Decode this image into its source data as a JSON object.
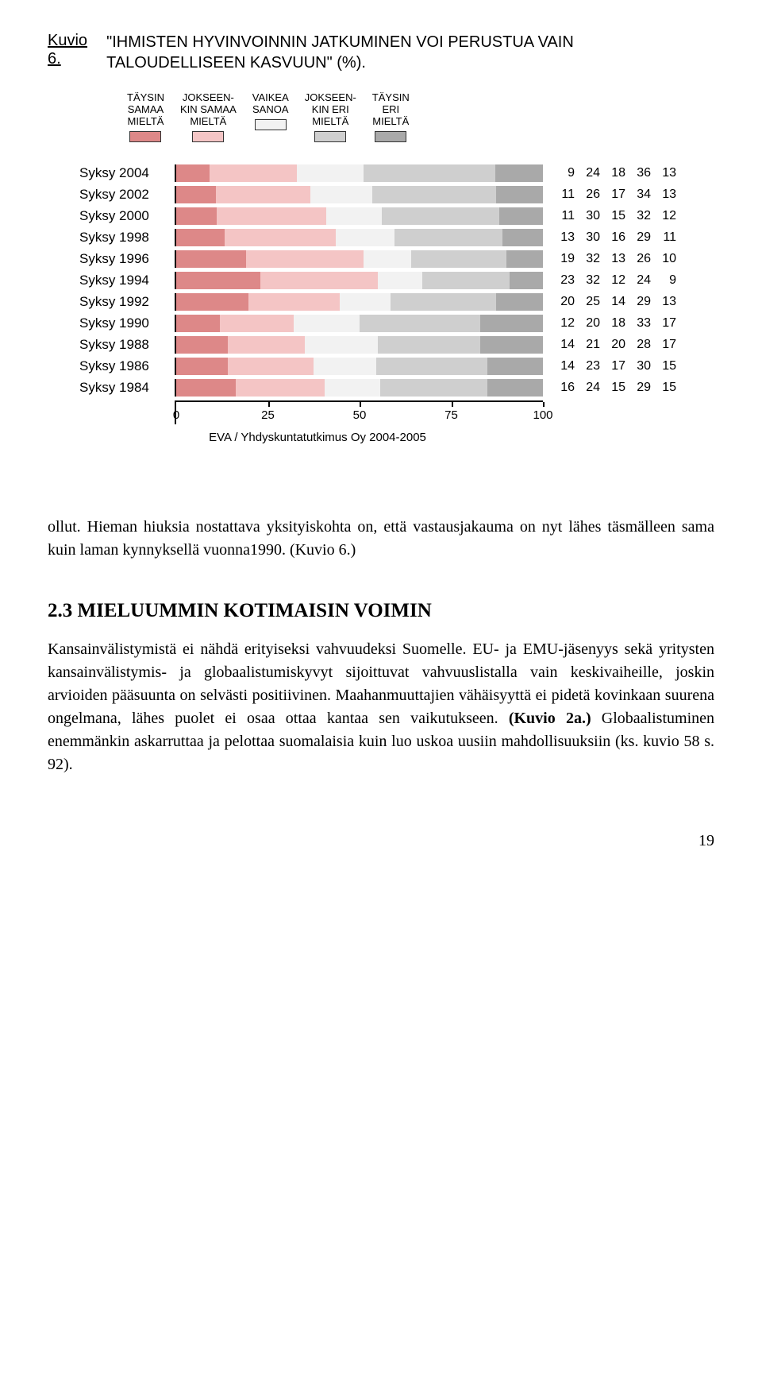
{
  "figure": {
    "label": "Kuvio 6.",
    "title": "\"IHMISTEN HYVINVOINNIN JATKUMINEN VOI PERUSTUA VAIN TALOUDELLISEEN KASVUUN\" (%).",
    "legend": [
      {
        "lines": [
          "TÄYSIN",
          "SAMAA",
          "MIELTÄ"
        ],
        "color": "#dd8888"
      },
      {
        "lines": [
          "JOKSEEN-",
          "KIN SAMAA",
          "MIELTÄ"
        ],
        "color": "#f4c5c5"
      },
      {
        "lines": [
          "VAIKEA",
          "SANOA"
        ],
        "color": "#f2f2f2"
      },
      {
        "lines": [
          "JOKSEEN-",
          "KIN ERI",
          "MIELTÄ"
        ],
        "color": "#cfcfcf"
      },
      {
        "lines": [
          "TÄYSIN",
          "ERI",
          "MIELTÄ"
        ],
        "color": "#a9a9a9"
      }
    ],
    "series_colors": [
      "#dd8888",
      "#f4c5c5",
      "#f2f2f2",
      "#cfcfcf",
      "#a9a9a9"
    ],
    "rows": [
      {
        "label": "Syksy 2004",
        "values": [
          9,
          24,
          18,
          36,
          13
        ]
      },
      {
        "label": "Syksy 2002",
        "values": [
          11,
          26,
          17,
          34,
          13
        ]
      },
      {
        "label": "Syksy 2000",
        "values": [
          11,
          30,
          15,
          32,
          12
        ]
      },
      {
        "label": "Syksy 1998",
        "values": [
          13,
          30,
          16,
          29,
          11
        ]
      },
      {
        "label": "Syksy 1996",
        "values": [
          19,
          32,
          13,
          26,
          10
        ]
      },
      {
        "label": "Syksy 1994",
        "values": [
          23,
          32,
          12,
          24,
          9
        ]
      },
      {
        "label": "Syksy 1992",
        "values": [
          20,
          25,
          14,
          29,
          13
        ]
      },
      {
        "label": "Syksy 1990",
        "values": [
          12,
          20,
          18,
          33,
          17
        ]
      },
      {
        "label": "Syksy 1988",
        "values": [
          14,
          21,
          20,
          28,
          17
        ]
      },
      {
        "label": "Syksy 1986",
        "values": [
          14,
          23,
          17,
          30,
          15
        ]
      },
      {
        "label": "Syksy 1984",
        "values": [
          16,
          24,
          15,
          29,
          15
        ]
      }
    ],
    "axis_ticks": [
      0,
      25,
      50,
      75,
      100
    ],
    "source": "EVA / Yhdyskuntatutkimus Oy 2004-2005"
  },
  "paragraph1": "ollut. Hieman hiuksia nostattava yksityiskohta on, että vastausjakauma on nyt lähes täsmälleen sama kuin laman kynnyksellä vuonna1990. (Kuvio 6.)",
  "section_heading": "2.3  MIELUUMMIN KOTIMAISIN VOIMIN",
  "paragraph2_parts": {
    "a": "Kansainvälistymistä ei nähdä erityiseksi vahvuudeksi Suomelle. EU- ja EMU-jäsenyys sekä yritysten kansainvälistymis- ja globaalistumiskyvyt sijoittuvat vahvuuslistalla vain keskivaiheille, joskin arvioiden pääsuunta on selvästi positiivinen. Maahanmuuttajien vähäisyyttä ei pidetä kovinkaan suurena ongelmana, lähes puolet ei osaa ottaa kantaa sen vaikutukseen. ",
    "bold1": "(Kuvio 2a.)",
    "b": " Globaalistuminen enemmänkin askarruttaa ja pelottaa suomalaisia kuin luo uskoa uusiin mahdollisuuksiin (ks. kuvio 58 s. 92)."
  },
  "page_number": "19"
}
